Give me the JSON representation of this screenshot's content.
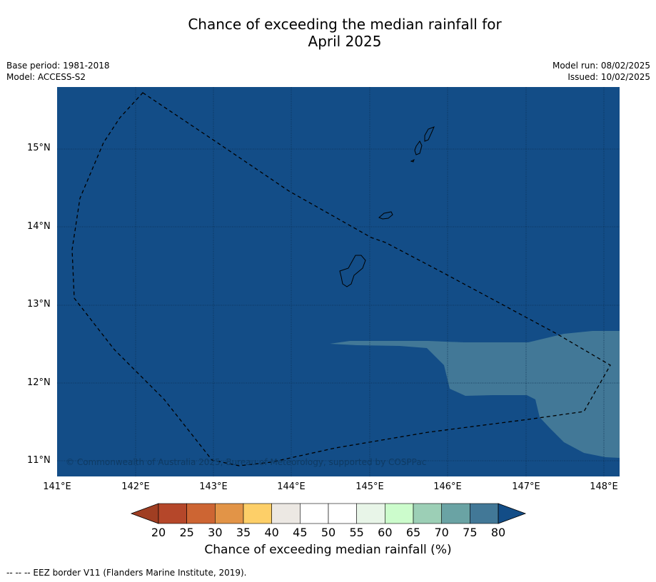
{
  "title_line1": "Chance of exceeding the median rainfall for",
  "title_line2": "April 2025",
  "meta": {
    "base_period": "Base period: 1981-2018",
    "model": "Model: ACCESS-S2",
    "model_run": "Model run: 08/02/2025",
    "issued": "Issued: 10/02/2025"
  },
  "map": {
    "lon_labels": [
      "141°E",
      "142°E",
      "143°E",
      "144°E",
      "145°E",
      "146°E",
      "147°E",
      "148°E"
    ],
    "lat_labels": [
      "15°N",
      "14°N",
      "13°N",
      "12°N",
      "11°N"
    ],
    "copyright": "© Commonwealth of Australia 2025, Bureau of Meteorology, supported by COSPPac",
    "base_color": "#134d87",
    "patch_color": "#427897"
  },
  "colorbar": {
    "ticks": [
      "20",
      "25",
      "30",
      "35",
      "40",
      "45",
      "50",
      "55",
      "60",
      "65",
      "70",
      "75",
      "80"
    ],
    "colors": [
      "#a03e22",
      "#b5472a",
      "#cd6533",
      "#e29447",
      "#fdcf68",
      "#ece8e3",
      "#ffffff",
      "#ffffff",
      "#e8f5e8",
      "#ccfccc",
      "#9ccfb6",
      "#6aa3a4",
      "#427897",
      "#134d87"
    ],
    "label": "Chance of exceeding median rainfall (%)"
  },
  "footnote": "--  --  -- EEZ border V11 (Flanders Marine Institute, 2019)."
}
